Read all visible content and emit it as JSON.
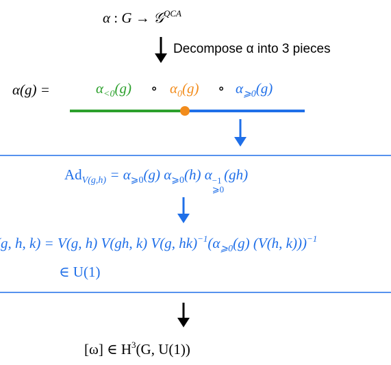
{
  "top_map": {
    "lhs": "α",
    "colon": ":",
    "group": "G",
    "arrow": "→",
    "target": "𝒢",
    "target_sup": "QCA"
  },
  "step1_label": "Decompose α into 3 pieces",
  "decomposition": {
    "lhs": "α(g) =",
    "left_piece": {
      "sym": "α",
      "sub": "<0",
      "arg": "(g)"
    },
    "circ1": "∘",
    "mid_piece": {
      "sym": "α",
      "sub": "0",
      "arg": "(g)"
    },
    "circ2": "∘",
    "right_piece": {
      "sym": "α",
      "sub": "⩾0",
      "arg": "(g)"
    }
  },
  "definition_V": {
    "lhs": "Ad",
    "lhs_sub": "V(g,h)",
    "rhs": "= α",
    "rhs_sub1": "⩾0",
    "rhs_mid1": "(g) α",
    "rhs_sub2": "⩾0",
    "rhs_mid2": "(h) α",
    "rhs_sup3": "−1",
    "rhs_sub3": "⩾0",
    "rhs_end": "(gh)"
  },
  "definition_omega": {
    "line1": "(g, h, k) = V(g, h) V(gh, k) V(g, hk)",
    "line1_sup": "−1",
    "line1_tail_a": "(α",
    "line1_tail_sub": "⩾0",
    "line1_tail_b": "(g) (V(h, k)))",
    "line1_tail_sup": "−1",
    "line2": "∈ U(1)"
  },
  "result": {
    "lhs": "[ω] ∈ H",
    "sup": "3",
    "rhs": "(G, U(1))"
  },
  "colors": {
    "green": "#2ca02c",
    "orange": "#f28c1c",
    "blue": "#1f6fe8",
    "black": "#000000"
  }
}
